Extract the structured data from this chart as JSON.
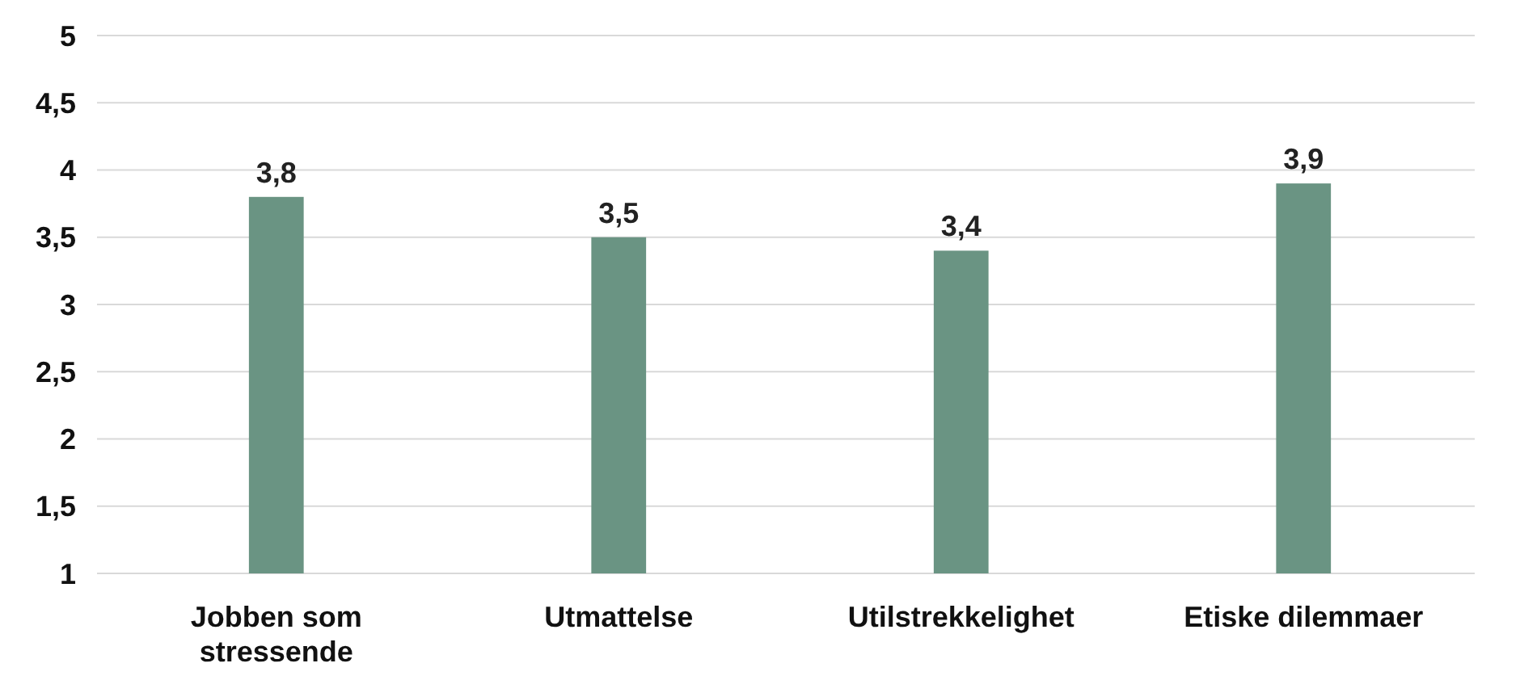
{
  "chart_data": {
    "type": "bar",
    "categories": [
      "Jobben som stressende",
      "Utmattelse",
      "Utilstrekkelighet",
      "Etiske dilemmaer"
    ],
    "values": [
      3.8,
      3.5,
      3.4,
      3.9
    ],
    "color": "#6a9483",
    "value_labels": [
      "3,8",
      "3,5",
      "3,4",
      "3,9"
    ],
    "ylim": [
      1,
      5
    ],
    "yticks": [
      1,
      {
        "value": 1.5,
        "label": "1,5"
      },
      2,
      {
        "value": 2.5,
        "label": "2,5"
      },
      3,
      {
        "value": 3.5,
        "label": "3,5"
      },
      4,
      {
        "value": 4.5,
        "label": "4,5"
      },
      5
    ],
    "grid": "y"
  }
}
